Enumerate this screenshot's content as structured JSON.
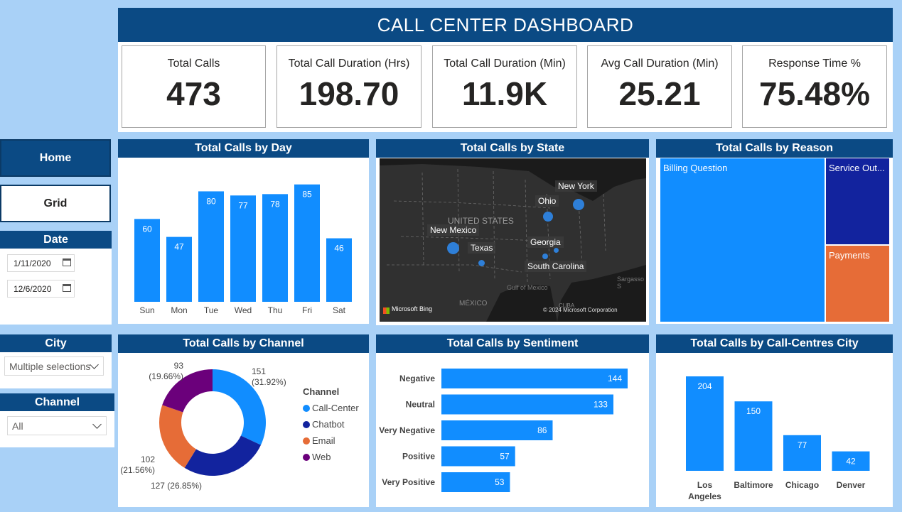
{
  "header": {
    "title": "CALL CENTER DASHBOARD"
  },
  "kpis": [
    {
      "label": "Total Calls",
      "value": "473"
    },
    {
      "label": "Total Call Duration (Hrs)",
      "value": "198.70"
    },
    {
      "label": "Total Call Duration (Min)",
      "value": "11.9K"
    },
    {
      "label": "Avg Call Duration (Min)",
      "value": "25.21"
    },
    {
      "label": "Response Time %",
      "value": "75.48%"
    }
  ],
  "nav": {
    "home": "Home",
    "grid": "Grid"
  },
  "date_slicer": {
    "title": "Date",
    "start": "1/11/2020",
    "end": "12/6/2020"
  },
  "city_slicer": {
    "title": "City",
    "value": "Multiple selections"
  },
  "channel_slicer": {
    "title": "Channel",
    "value": "All"
  },
  "colors": {
    "navy": "#0b4a84",
    "bar": "#118dff",
    "chatbot": "#12239e",
    "email": "#e66c37",
    "web": "#6b007b",
    "map_dot": "#2e7fd8"
  },
  "panels": {
    "by_day": "Total Calls by Day",
    "by_state": "Total Calls by State",
    "by_reason": "Total Calls by Reason",
    "by_channel": "Total Calls by Channel",
    "by_sentiment": "Total Calls by Sentiment",
    "by_city": "Total Calls by Call-Centres City"
  },
  "map": {
    "states": [
      "New York",
      "Ohio",
      "New Mexico",
      "Texas",
      "Georgia",
      "South Carolina"
    ],
    "bg_labels": [
      "UNITED STATES",
      "Gulf of Mexico",
      "MÉXICO",
      "CUBA",
      "Sargasso S"
    ],
    "bing": "Microsoft Bing",
    "copyright": "© 2024 Microsoft Corporation"
  },
  "treemap": {
    "items": [
      {
        "label": "Billing Question"
      },
      {
        "label": "Service Out..."
      },
      {
        "label": "Payments"
      }
    ]
  },
  "channel_legend_title": "Channel",
  "chart_data": [
    {
      "type": "bar",
      "title": "Total Calls by Day",
      "categories": [
        "Sun",
        "Mon",
        "Tue",
        "Wed",
        "Thu",
        "Fri",
        "Sat"
      ],
      "values": [
        60,
        47,
        80,
        77,
        78,
        85,
        46
      ],
      "ylim": [
        0,
        90
      ]
    },
    {
      "type": "pie",
      "title": "Total Calls by Channel",
      "categories": [
        "Call-Center",
        "Chatbot",
        "Email",
        "Web"
      ],
      "values": [
        151,
        127,
        102,
        93
      ],
      "labels": [
        {
          "value": "151",
          "pct": "(31.92%)"
        },
        {
          "value": "127 (26.85%)",
          "pct": ""
        },
        {
          "value": "102",
          "pct": "(21.56%)"
        },
        {
          "value": "93",
          "pct": "(19.66%)"
        }
      ]
    },
    {
      "type": "bar",
      "title": "Total Calls by Sentiment",
      "orientation": "horizontal",
      "categories": [
        "Negative",
        "Neutral",
        "Very Negative",
        "Positive",
        "Very Positive"
      ],
      "values": [
        144,
        133,
        86,
        57,
        53
      ],
      "xlim": [
        0,
        150
      ]
    },
    {
      "type": "bar",
      "title": "Total Calls by Call-Centres City",
      "categories": [
        "Los Angeles",
        "Baltimore",
        "Chicago",
        "Denver"
      ],
      "category_lines": [
        [
          "Los",
          "Angeles"
        ],
        [
          "Baltimore"
        ],
        [
          "Chicago"
        ],
        [
          "Denver"
        ]
      ],
      "values": [
        204,
        150,
        77,
        42
      ],
      "ylim": [
        0,
        220
      ]
    }
  ]
}
